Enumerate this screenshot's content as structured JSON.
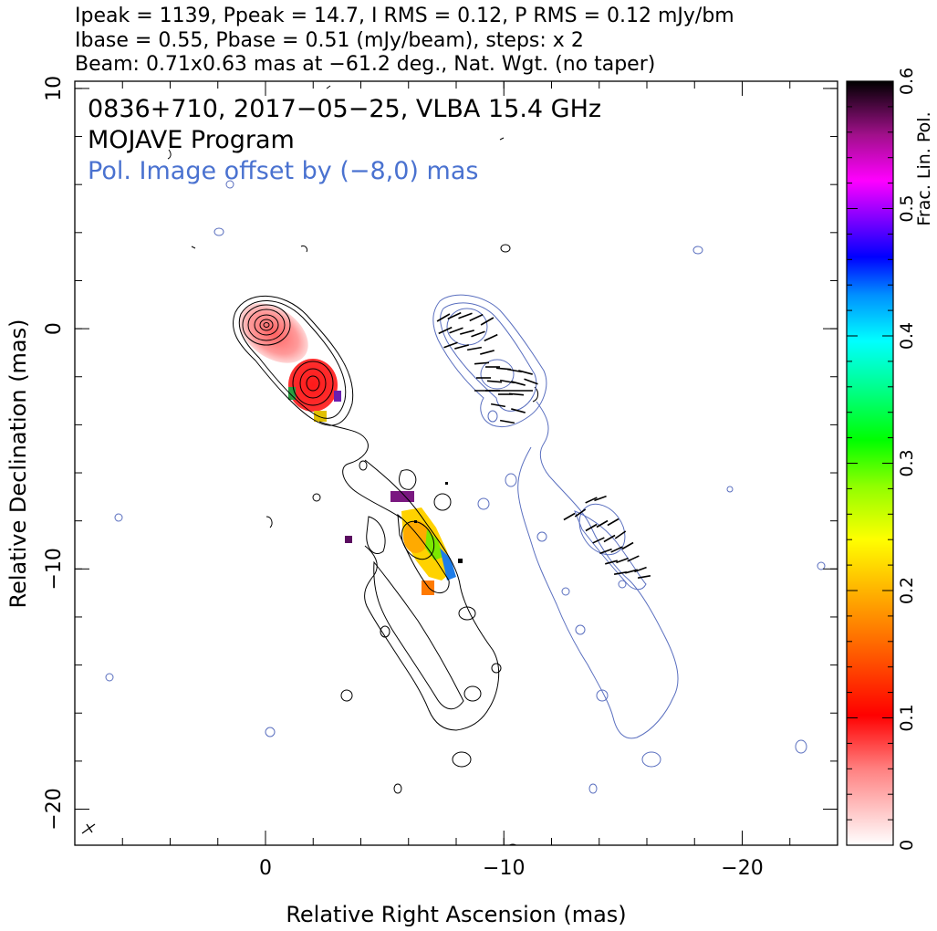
{
  "header": {
    "line1": "Ipeak = 1139, Ppeak = 14.7, I RMS = 0.12, P RMS = 0.12 mJy/bm",
    "line2": "Ibase = 0.55, Pbase = 0.51 (mJy/beam), steps: x 2",
    "line3": "Beam: 0.71x0.63 mas at −61.2 deg., Nat. Wgt. (no taper)"
  },
  "annotations": {
    "source": "0836+710, 2017−05−25, VLBA 15.4 GHz",
    "program": "MOJAVE Program",
    "pol_note": "Pol. Image offset by (−8,0) mas",
    "pol_note_color": "#4a72d0"
  },
  "colors": {
    "total_intensity_contours": "#000000",
    "polarization_contours": "#5a6fbf",
    "evpa_sticks": "#000000"
  },
  "chart_data": {
    "type": "heatmap",
    "title": "0836+710, 2017−05−25, VLBA 15.4 GHz",
    "xlabel": "Relative Right Ascension (mas)",
    "ylabel": "Relative Declination (mas)",
    "xlim": [
      8,
      -24
    ],
    "ylim": [
      -21.5,
      10.3
    ],
    "x_ticks": [
      {
        "value": 0,
        "label": "0"
      },
      {
        "value": -10,
        "label": "−10"
      },
      {
        "value": -20,
        "label": "−20"
      }
    ],
    "y_ticks": [
      {
        "value": 10,
        "label": "10"
      },
      {
        "value": 0,
        "label": "0"
      },
      {
        "value": -10,
        "label": "−10"
      },
      {
        "value": -20,
        "label": "−20"
      }
    ],
    "colorbar": {
      "label": "Frac. Lin. Pol.",
      "range": [
        0,
        0.6
      ],
      "ticks": [
        {
          "value": 0,
          "label": "0"
        },
        {
          "value": 0.1,
          "label": "0.1"
        },
        {
          "value": 0.2,
          "label": "0.2"
        },
        {
          "value": 0.3,
          "label": "0.3"
        },
        {
          "value": 0.4,
          "label": "0.4"
        },
        {
          "value": 0.5,
          "label": "0.5"
        },
        {
          "value": 0.6,
          "label": "0.6"
        }
      ]
    },
    "total_intensity": {
      "peak_mJy_per_beam": 1139,
      "rms": 0.12,
      "base": 0.55,
      "contour_step_factor": 2,
      "core_position": [
        0,
        0
      ]
    },
    "polarization": {
      "peak_mJy_per_beam": 14.7,
      "rms": 0.12,
      "base": 0.51,
      "image_offset_mas": [
        -8,
        0
      ],
      "fractional_pol_regions": [
        {
          "x": -2.0,
          "y": -2.5,
          "frac": 0.06
        },
        {
          "x": -0.8,
          "y": -0.8,
          "frac": 0.08
        },
        {
          "x": -6.0,
          "y": -8.8,
          "frac": 0.2
        },
        {
          "x": -6.8,
          "y": -9.8,
          "frac": 0.3
        },
        {
          "x": -6.3,
          "y": -11.0,
          "frac": 0.16
        },
        {
          "x": -5.8,
          "y": -7.3,
          "frac": 0.55
        },
        {
          "x": -7.5,
          "y": -10.2,
          "frac": 0.45
        }
      ]
    },
    "beam": {
      "major_mas": 0.71,
      "minor_mas": 0.63,
      "pa_deg": -61.2,
      "weighting": "Nat. Wgt. (no taper)"
    }
  }
}
